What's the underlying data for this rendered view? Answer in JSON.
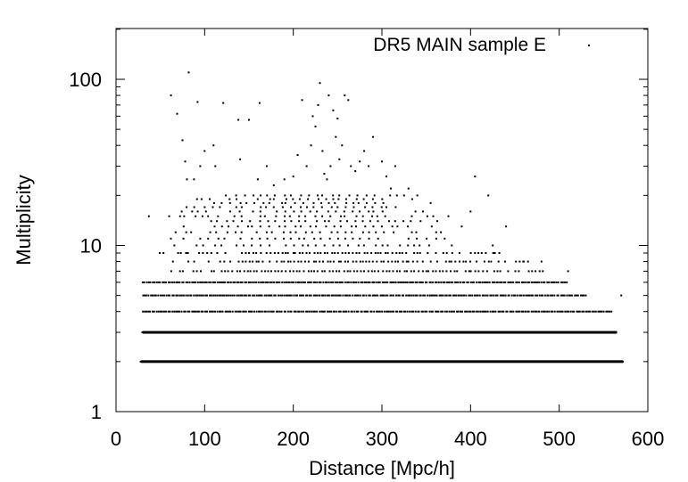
{
  "chart_data": {
    "type": "scatter",
    "title": "",
    "xlabel": "Distance [Mpc/h]",
    "ylabel": "Multiplicity",
    "xlim": [
      0,
      600
    ],
    "ylim": [
      1,
      200
    ],
    "yscale": "log",
    "grid": false,
    "legend_position": "top-right",
    "x_ticks": [
      0,
      100,
      200,
      300,
      400,
      500,
      600
    ],
    "y_ticks": [
      1,
      10,
      100
    ],
    "x_tick_labels": [
      "0",
      "100",
      "200",
      "300",
      "400",
      "500",
      "600"
    ],
    "y_tick_labels": [
      "1",
      "10",
      "100"
    ],
    "point_color": "#000000",
    "series": [
      {
        "name": "DR5 MAIN sample E",
        "marker": "dot",
        "bands": [
          {
            "multiplicity": 2,
            "x_range": [
              28,
              572
            ],
            "density": "continuous"
          },
          {
            "multiplicity": 3,
            "x_range": [
              30,
              565
            ],
            "density": "continuous"
          },
          {
            "multiplicity": 4,
            "x_range": [
              30,
              560
            ],
            "density": "dense"
          },
          {
            "multiplicity": 5,
            "x_range": [
              30,
              530
            ],
            "density": "dense"
          },
          {
            "multiplicity": 6,
            "x_range": [
              30,
              510
            ],
            "density": "dense"
          },
          {
            "multiplicity": 7,
            "x_range": [
              35,
              490
            ],
            "density": "medium"
          },
          {
            "multiplicity": 8,
            "x_range": [
              45,
              470
            ],
            "density": "medium"
          },
          {
            "multiplicity": 9,
            "x_range": [
              50,
              440
            ],
            "density": "medium"
          },
          {
            "multiplicity": 10,
            "x_range": [
              55,
              420
            ],
            "density": "sparse"
          },
          {
            "multiplicity": 11,
            "x_range": [
              60,
              400
            ],
            "density": "sparse"
          },
          {
            "multiplicity": 12,
            "x_range": [
              60,
              390
            ],
            "density": "sparse"
          },
          {
            "multiplicity": 13,
            "x_range": [
              65,
              380
            ],
            "density": "sparse"
          },
          {
            "multiplicity": 14,
            "x_range": [
              70,
              370
            ],
            "density": "sparse"
          },
          {
            "multiplicity": 15,
            "x_range": [
              70,
              360
            ],
            "density": "sparse"
          },
          {
            "multiplicity": 16,
            "x_range": [
              75,
              350
            ],
            "density": "sparse"
          },
          {
            "multiplicity": 17,
            "x_range": [
              80,
              345
            ],
            "density": "sparse"
          },
          {
            "multiplicity": 18,
            "x_range": [
              85,
              340
            ],
            "density": "sparse"
          },
          {
            "multiplicity": 19,
            "x_range": [
              90,
              335
            ],
            "density": "sparse"
          },
          {
            "multiplicity": 20,
            "x_range": [
              90,
              330
            ],
            "density": "sparse"
          }
        ],
        "outliers": [
          {
            "x": 37,
            "y": 15
          },
          {
            "x": 60,
            "y": 15
          },
          {
            "x": 62,
            "y": 80
          },
          {
            "x": 69,
            "y": 62
          },
          {
            "x": 75,
            "y": 43
          },
          {
            "x": 78,
            "y": 32
          },
          {
            "x": 80,
            "y": 25
          },
          {
            "x": 82,
            "y": 110
          },
          {
            "x": 88,
            "y": 25
          },
          {
            "x": 92,
            "y": 73
          },
          {
            "x": 95,
            "y": 30
          },
          {
            "x": 100,
            "y": 37
          },
          {
            "x": 110,
            "y": 40
          },
          {
            "x": 112,
            "y": 30
          },
          {
            "x": 121,
            "y": 72
          },
          {
            "x": 138,
            "y": 57
          },
          {
            "x": 140,
            "y": 33
          },
          {
            "x": 150,
            "y": 57
          },
          {
            "x": 160,
            "y": 25
          },
          {
            "x": 162,
            "y": 72
          },
          {
            "x": 170,
            "y": 30
          },
          {
            "x": 178,
            "y": 23
          },
          {
            "x": 190,
            "y": 25
          },
          {
            "x": 200,
            "y": 26
          },
          {
            "x": 205,
            "y": 35
          },
          {
            "x": 210,
            "y": 75
          },
          {
            "x": 215,
            "y": 30
          },
          {
            "x": 220,
            "y": 40
          },
          {
            "x": 222,
            "y": 60
          },
          {
            "x": 225,
            "y": 52
          },
          {
            "x": 228,
            "y": 70
          },
          {
            "x": 230,
            "y": 95
          },
          {
            "x": 233,
            "y": 37
          },
          {
            "x": 235,
            "y": 27
          },
          {
            "x": 238,
            "y": 25
          },
          {
            "x": 240,
            "y": 80
          },
          {
            "x": 242,
            "y": 30
          },
          {
            "x": 245,
            "y": 65
          },
          {
            "x": 248,
            "y": 45
          },
          {
            "x": 250,
            "y": 58
          },
          {
            "x": 252,
            "y": 33
          },
          {
            "x": 255,
            "y": 40
          },
          {
            "x": 258,
            "y": 80
          },
          {
            "x": 262,
            "y": 75
          },
          {
            "x": 265,
            "y": 30
          },
          {
            "x": 270,
            "y": 28
          },
          {
            "x": 275,
            "y": 32
          },
          {
            "x": 280,
            "y": 37
          },
          {
            "x": 285,
            "y": 30
          },
          {
            "x": 290,
            "y": 45
          },
          {
            "x": 300,
            "y": 32
          },
          {
            "x": 305,
            "y": 26
          },
          {
            "x": 310,
            "y": 22
          },
          {
            "x": 315,
            "y": 30
          },
          {
            "x": 325,
            "y": 20
          },
          {
            "x": 330,
            "y": 22
          },
          {
            "x": 340,
            "y": 20
          },
          {
            "x": 355,
            "y": 18
          },
          {
            "x": 375,
            "y": 15
          },
          {
            "x": 390,
            "y": 13
          },
          {
            "x": 400,
            "y": 16
          },
          {
            "x": 405,
            "y": 26
          },
          {
            "x": 420,
            "y": 20
          },
          {
            "x": 425,
            "y": 10
          },
          {
            "x": 440,
            "y": 13
          },
          {
            "x": 460,
            "y": 8
          },
          {
            "x": 480,
            "y": 8
          },
          {
            "x": 510,
            "y": 7
          },
          {
            "x": 530,
            "y": 5
          },
          {
            "x": 545,
            "y": 4
          },
          {
            "x": 570,
            "y": 5
          }
        ]
      }
    ]
  }
}
